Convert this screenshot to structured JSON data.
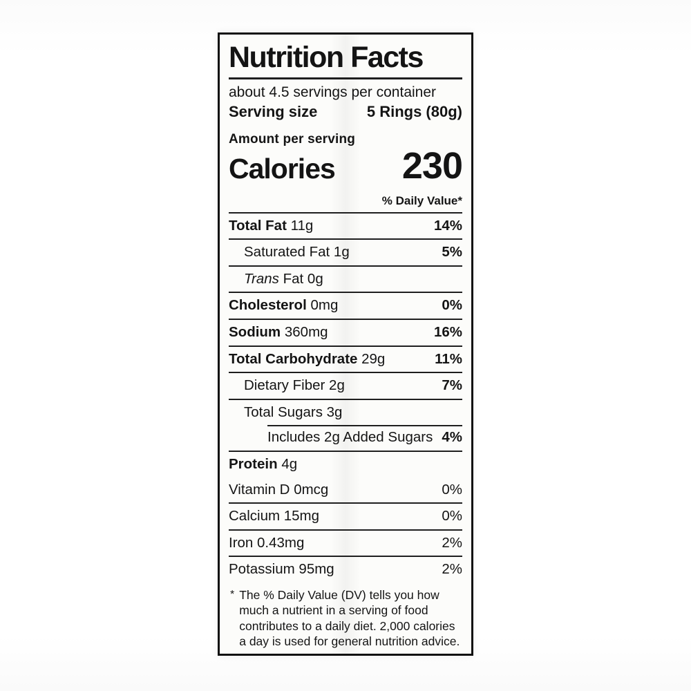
{
  "label": {
    "title": "Nutrition Facts",
    "servings_per_container": "about 4.5 servings per container",
    "serving_size_label": "Serving size",
    "serving_size_value": "5 Rings (80g)",
    "amount_per_serving": "Amount per serving",
    "calories_label": "Calories",
    "calories_value": "230",
    "daily_value_header": "% Daily Value*",
    "nutrients": [
      {
        "name": "Total Fat",
        "amount": "11g",
        "dv": "14%"
      },
      {
        "name": "Saturated Fat",
        "amount": "1g",
        "dv": "5%"
      },
      {
        "name_italic": "Trans",
        "name": "Fat",
        "amount": "0g",
        "dv": ""
      },
      {
        "name": "Cholesterol",
        "amount": "0mg",
        "dv": "0%"
      },
      {
        "name": "Sodium",
        "amount": "360mg",
        "dv": "16%"
      },
      {
        "name": "Total Carbohydrate",
        "amount": "29g",
        "dv": "11%"
      },
      {
        "name": "Dietary Fiber",
        "amount": "2g",
        "dv": "7%"
      },
      {
        "name": "Total Sugars",
        "amount": "3g",
        "dv": ""
      },
      {
        "name": "Includes 2g Added Sugars",
        "amount": "",
        "dv": "4%"
      },
      {
        "name": "Protein",
        "amount": "4g",
        "dv": ""
      }
    ],
    "vitamins": [
      {
        "name": "Vitamin D",
        "amount": "0mcg",
        "dv": "0%"
      },
      {
        "name": "Calcium",
        "amount": "15mg",
        "dv": "0%"
      },
      {
        "name": "Iron",
        "amount": "0.43mg",
        "dv": "2%"
      },
      {
        "name": "Potassium",
        "amount": "95mg",
        "dv": "2%"
      }
    ],
    "footnote_marker": "*",
    "footnote": "The % Daily Value (DV) tells you how much a nutrient in a serving of food contributes to a daily diet. 2,000 calories a day is used for general nutrition advice."
  },
  "colors": {
    "ink": "#141414",
    "label_bg": "#fcfcfa",
    "page_bg": "#fefefe"
  }
}
